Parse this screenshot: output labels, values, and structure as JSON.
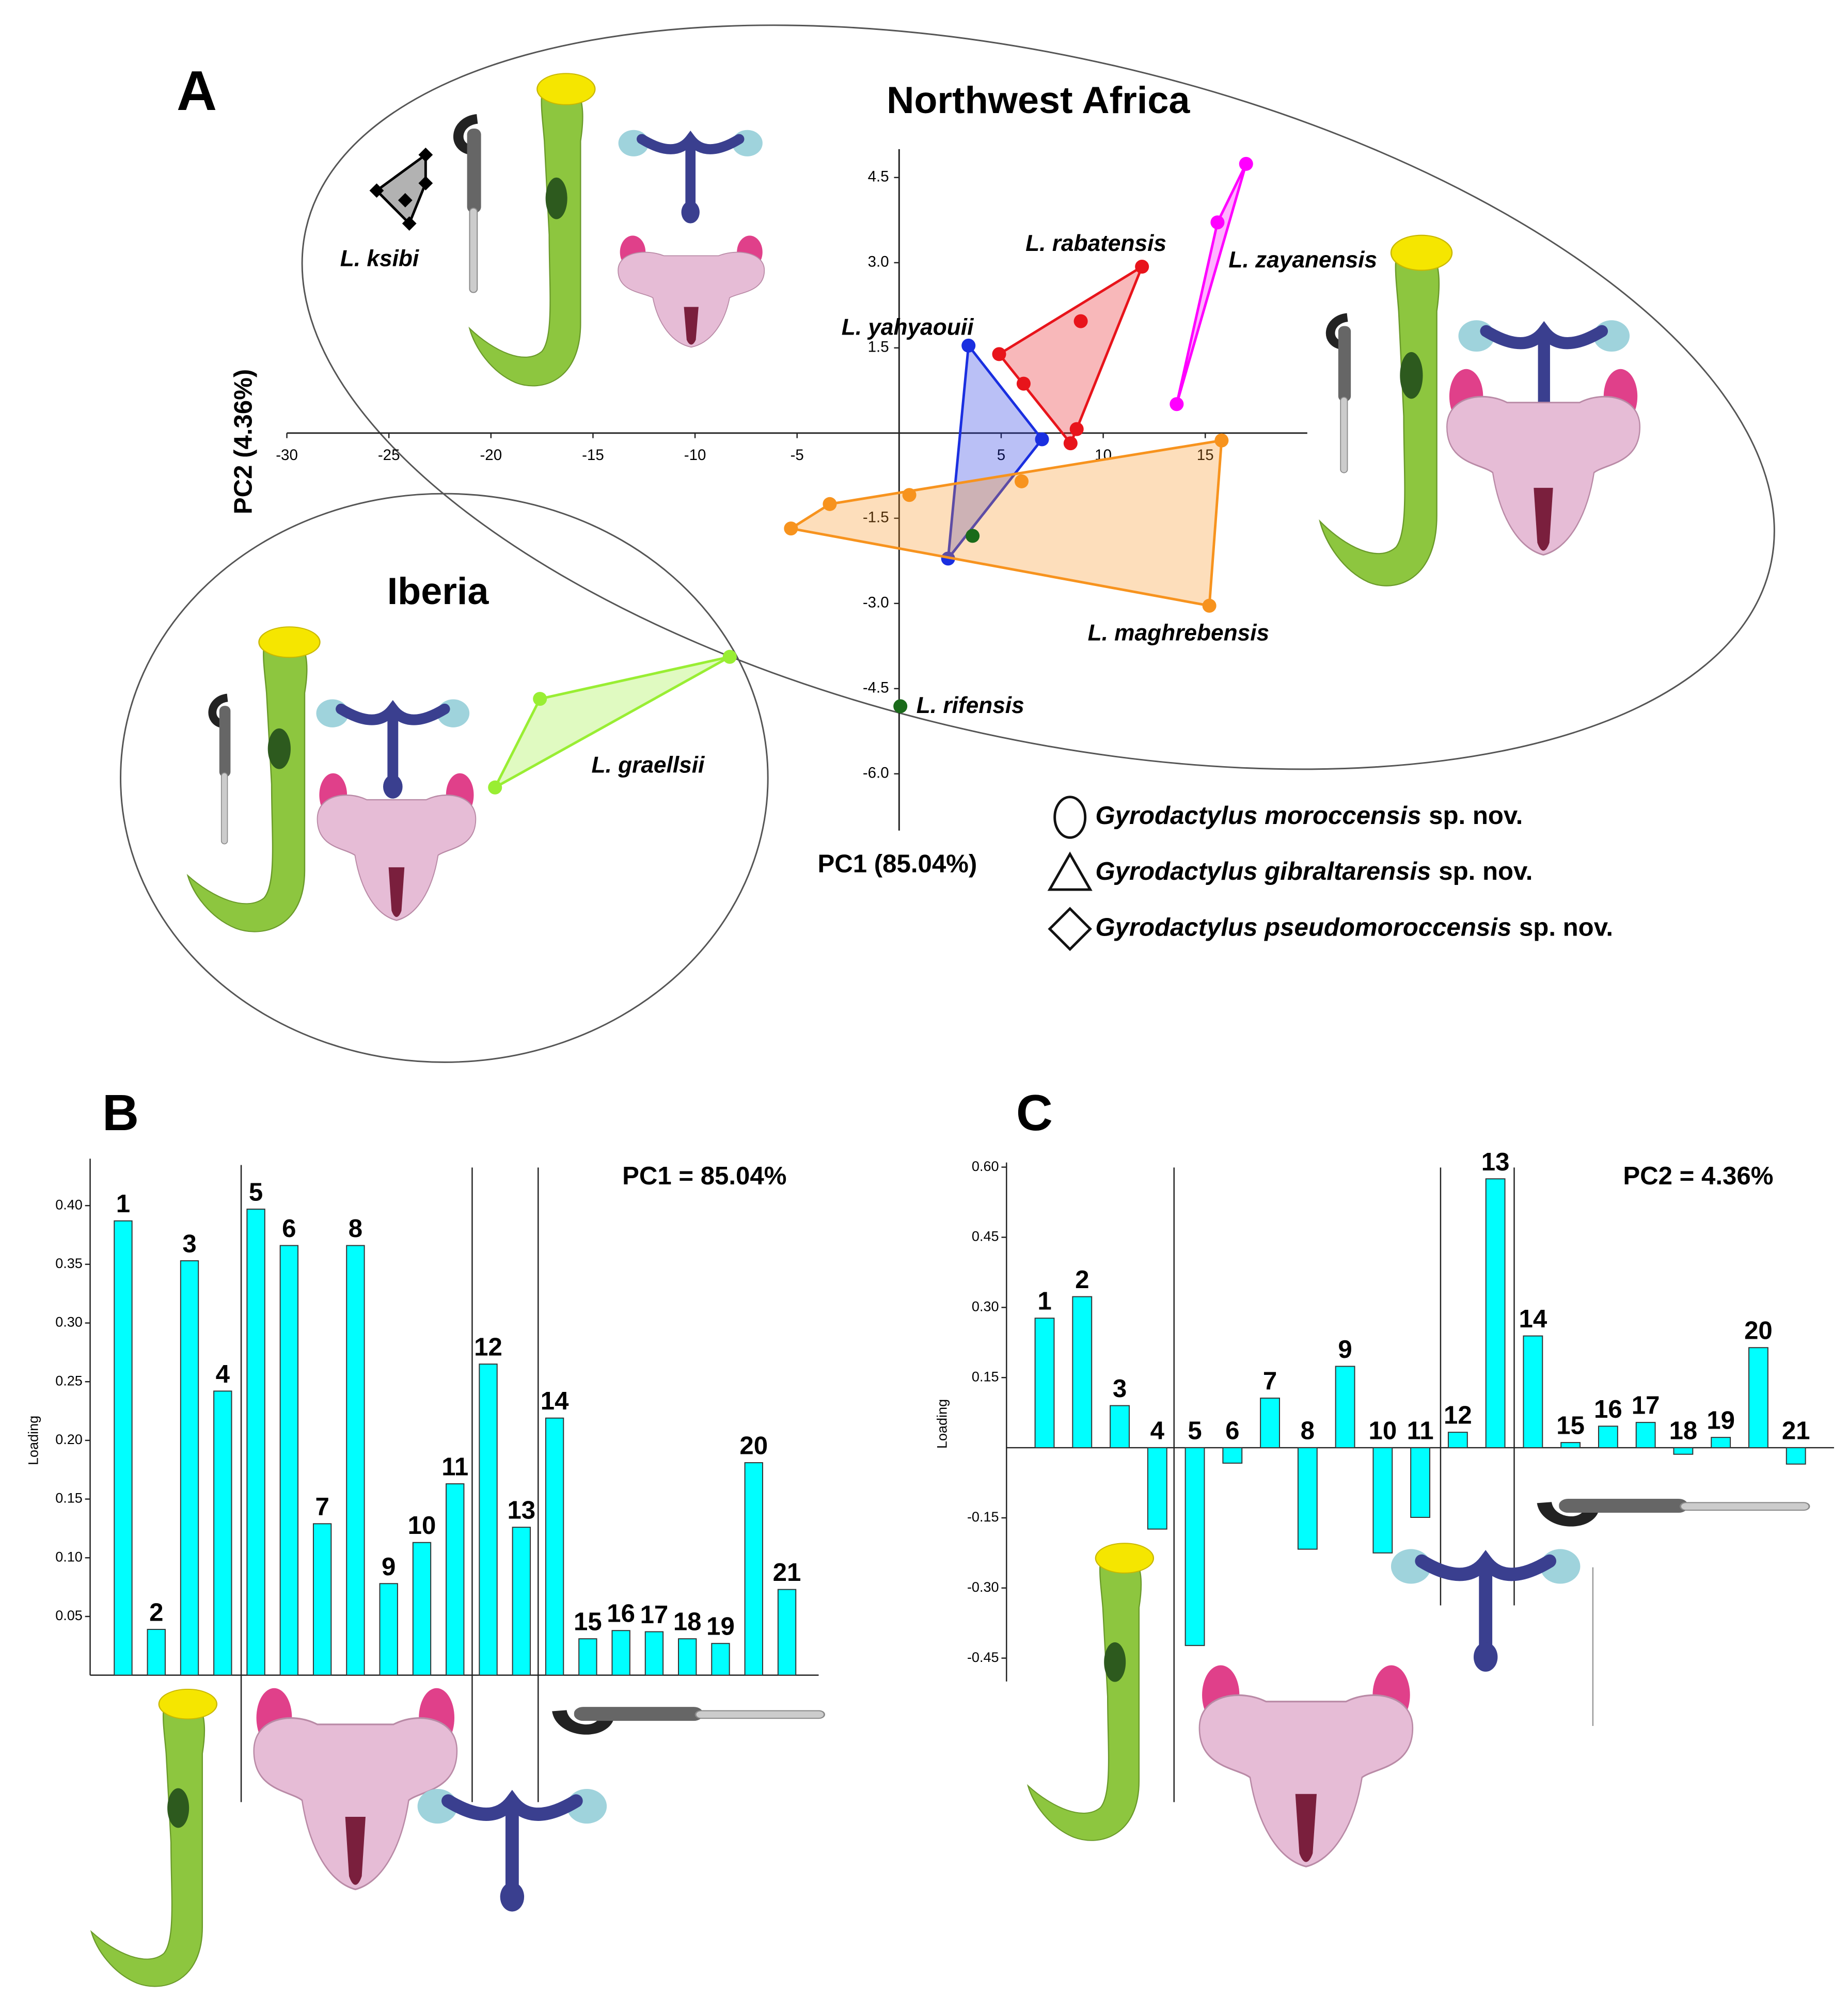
{
  "chart_data": [
    {
      "type": "scatter",
      "panel": "A",
      "regions": [
        "Northwest Africa",
        "Iberia"
      ],
      "x_label": "PC1 (85.04%)",
      "y_label": "PC2 (4.36%)",
      "xlim": [
        -30,
        20
      ],
      "ylim": [
        -7,
        5
      ],
      "xticks": [
        -30,
        -25,
        -20,
        -15,
        -10,
        -5,
        5,
        10,
        15
      ],
      "yticks": [
        4.5,
        {
          "value": 3,
          "label": "3.0"
        },
        1.5,
        -1.5,
        {
          "value": -3,
          "label": "-3.0"
        },
        -4.5,
        {
          "value": -6,
          "label": "-6.0"
        }
      ],
      "series": [
        {
          "name": "L. ksibi",
          "color": "#000000",
          "marker": "diamond",
          "x": [
            -23.2,
            -25.6,
            -24.0,
            -23.2,
            -24.2
          ],
          "y": [
            4.9,
            4.27,
            3.69,
            4.4,
            4.1
          ]
        },
        {
          "name": "L. rabatensis",
          "color": "#e8141b",
          "marker": "circle",
          "x": [
            11.9,
            8.9,
            4.9,
            6.1,
            8.7,
            8.4
          ],
          "y": [
            2.93,
            1.97,
            1.39,
            0.87,
            0.07,
            -0.18
          ]
        },
        {
          "name": "L. zayanensis",
          "color": "#ff00ff",
          "marker": "circle",
          "x": [
            17.0,
            15.6,
            13.6
          ],
          "y": [
            4.74,
            3.71,
            0.51
          ]
        },
        {
          "name": "L. yahyaouii",
          "color": "#1a2fe0",
          "marker": "circle",
          "x": [
            3.4,
            7.0,
            2.4
          ],
          "y": [
            1.54,
            -0.11,
            -2.21
          ]
        },
        {
          "name": "L. maghrebensis",
          "color": "#f7931e",
          "marker": "circle",
          "x": [
            -5.3,
            -3.4,
            0.5,
            6.0,
            15.8,
            15.2
          ],
          "y": [
            -1.68,
            -1.25,
            -1.09,
            -0.85,
            -0.13,
            -3.04
          ]
        },
        {
          "name": "L. rifensis",
          "color": "#1a6b1a",
          "marker": "circle",
          "x": [
            3.6,
            0.06
          ],
          "y": [
            -1.81,
            -4.81
          ]
        },
        {
          "name": "L. graellsii",
          "color": "#99ee33",
          "marker": "circle",
          "x": [
            -8.3,
            -17.6,
            -19.8
          ],
          "y": [
            -3.94,
            -4.68,
            -6.24
          ]
        }
      ],
      "legend": [
        {
          "shape": "circle",
          "species": "Gyrodactylus moroccensis",
          "suffix": "sp. nov."
        },
        {
          "shape": "triangle",
          "species": "Gyrodactylus gibraltarensis",
          "suffix": "sp. nov."
        },
        {
          "shape": "diamond",
          "species": "Gyrodactylus pseudomoroccensis",
          "suffix": "sp. nov."
        }
      ]
    },
    {
      "type": "bar",
      "panel": "B",
      "annotation": "PC1 = 85.04%",
      "y_label": "Loading",
      "color": "#00ffff",
      "categories": [
        "1",
        "2",
        "3",
        "4",
        "5",
        "6",
        "7",
        "8",
        "9",
        "10",
        "11",
        "12",
        "13",
        "14",
        "15",
        "16",
        "17",
        "18",
        "19",
        "20",
        "21"
      ],
      "values": [
        0.387,
        0.039,
        0.353,
        0.242,
        0.397,
        0.366,
        0.129,
        0.366,
        0.078,
        0.113,
        0.163,
        0.265,
        0.126,
        0.219,
        0.031,
        0.038,
        0.037,
        0.031,
        0.027,
        0.181,
        0.073
      ],
      "ylim": [
        0,
        0.44
      ],
      "yticks": [
        0.05,
        {
          "value": 0.1,
          "label": "0.10"
        },
        0.15,
        {
          "value": 0.2,
          "label": "0.20"
        },
        0.25,
        {
          "value": 0.3,
          "label": "0.30"
        },
        0.35,
        {
          "value": 0.4,
          "label": "0.40"
        }
      ]
    },
    {
      "type": "bar",
      "panel": "C",
      "annotation": "PC2 = 4.36%",
      "y_label": "Loading",
      "color": "#00ffff",
      "categories": [
        "1",
        "2",
        "3",
        "4",
        "5",
        "6",
        "7",
        "8",
        "9",
        "10",
        "11",
        "12",
        "13",
        "14",
        "15",
        "16",
        "17",
        "18",
        "19",
        "20",
        "21"
      ],
      "values": [
        0.277,
        0.323,
        0.09,
        -0.174,
        -0.423,
        -0.033,
        0.106,
        -0.217,
        0.174,
        -0.225,
        -0.149,
        0.033,
        0.575,
        0.239,
        0.011,
        0.046,
        0.054,
        -0.014,
        0.022,
        0.214,
        -0.035
      ],
      "ylim": [
        -0.5,
        0.61
      ],
      "yticks": [
        {
          "value": 0.6,
          "label": "0.60"
        },
        0.45,
        {
          "value": 0.3,
          "label": "0.30"
        },
        0.15,
        -0.15,
        {
          "value": -0.3,
          "label": "-0.30"
        },
        -0.45
      ]
    }
  ]
}
